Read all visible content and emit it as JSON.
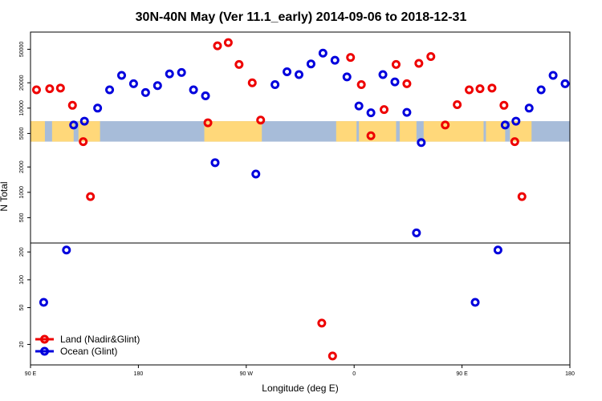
{
  "chart_data": {
    "type": "scatter",
    "title": "30N-40N May (Ver 11.1_early)   2014-09-06 to 2018-12-31",
    "xlabel": "Longitude (deg E)",
    "ylabel": "N Total",
    "xlim": [
      90,
      540
    ],
    "x_ticks": [
      {
        "value": 90,
        "label": "90 E"
      },
      {
        "value": 180,
        "label": "180"
      },
      {
        "value": 270,
        "label": "90 W"
      },
      {
        "value": 360,
        "label": "0"
      },
      {
        "value": 450,
        "label": "90 E"
      },
      {
        "value": 540,
        "label": "180"
      }
    ],
    "y_scale": "log",
    "panels": [
      {
        "name": "upper",
        "ylim": [
          250,
          80000
        ],
        "y_ticks": [
          {
            "value": 500,
            "label": "500"
          },
          {
            "value": 1000,
            "label": "1000"
          },
          {
            "value": 2000,
            "label": "2000"
          },
          {
            "value": 5000,
            "label": "5000"
          },
          {
            "value": 10000,
            "label": "10000"
          },
          {
            "value": 20000,
            "label": "20000"
          },
          {
            "value": 50000,
            "label": "50000"
          }
        ]
      },
      {
        "name": "lower",
        "ylim": [
          12,
          250
        ],
        "y_ticks": [
          {
            "value": 20,
            "label": "20"
          },
          {
            "value": 50,
            "label": "50"
          },
          {
            "value": 100,
            "label": "100"
          },
          {
            "value": 200,
            "label": "200"
          }
        ]
      }
    ],
    "series": [
      {
        "name": "Land (Nadir&Glint)",
        "color": "#ee0000",
        "points": [
          {
            "x": 95,
            "y": 16500
          },
          {
            "x": 106,
            "y": 17000
          },
          {
            "x": 115,
            "y": 17300
          },
          {
            "x": 125,
            "y": 10800
          },
          {
            "x": 134,
            "y": 4000
          },
          {
            "x": 140,
            "y": 890
          },
          {
            "x": 238,
            "y": 6700
          },
          {
            "x": 246,
            "y": 55000
          },
          {
            "x": 255,
            "y": 60000
          },
          {
            "x": 264,
            "y": 33000
          },
          {
            "x": 275,
            "y": 20000
          },
          {
            "x": 282,
            "y": 7200
          },
          {
            "x": 333,
            "y": 34
          },
          {
            "x": 342,
            "y": 15
          },
          {
            "x": 357,
            "y": 40000
          },
          {
            "x": 366,
            "y": 19000
          },
          {
            "x": 374,
            "y": 4700
          },
          {
            "x": 385,
            "y": 9600
          },
          {
            "x": 395,
            "y": 33000
          },
          {
            "x": 404,
            "y": 19500
          },
          {
            "x": 414,
            "y": 34000
          },
          {
            "x": 424,
            "y": 41000
          },
          {
            "x": 436,
            "y": 6300
          },
          {
            "x": 446,
            "y": 11000
          },
          {
            "x": 456,
            "y": 16500
          },
          {
            "x": 465,
            "y": 17000
          },
          {
            "x": 475,
            "y": 17300
          },
          {
            "x": 485,
            "y": 10800
          },
          {
            "x": 494,
            "y": 4000
          },
          {
            "x": 500,
            "y": 890
          }
        ]
      },
      {
        "name": "Ocean (Glint)",
        "color": "#0000dd",
        "points": [
          {
            "x": 101,
            "y": 57
          },
          {
            "x": 120,
            "y": 210
          },
          {
            "x": 126,
            "y": 6300
          },
          {
            "x": 135,
            "y": 7000
          },
          {
            "x": 146,
            "y": 10000
          },
          {
            "x": 156,
            "y": 16500
          },
          {
            "x": 166,
            "y": 24500
          },
          {
            "x": 176,
            "y": 19500
          },
          {
            "x": 186,
            "y": 15300
          },
          {
            "x": 196,
            "y": 18500
          },
          {
            "x": 206,
            "y": 25500
          },
          {
            "x": 216,
            "y": 26500
          },
          {
            "x": 226,
            "y": 16500
          },
          {
            "x": 236,
            "y": 14000
          },
          {
            "x": 244,
            "y": 2250
          },
          {
            "x": 278,
            "y": 1650
          },
          {
            "x": 294,
            "y": 19000
          },
          {
            "x": 304,
            "y": 27000
          },
          {
            "x": 314,
            "y": 25000
          },
          {
            "x": 324,
            "y": 33500
          },
          {
            "x": 334,
            "y": 45000
          },
          {
            "x": 344,
            "y": 37000
          },
          {
            "x": 354,
            "y": 23500
          },
          {
            "x": 364,
            "y": 10600
          },
          {
            "x": 374,
            "y": 8800
          },
          {
            "x": 384,
            "y": 25000
          },
          {
            "x": 394,
            "y": 20500
          },
          {
            "x": 404,
            "y": 8900
          },
          {
            "x": 412,
            "y": 330
          },
          {
            "x": 416,
            "y": 3900
          },
          {
            "x": 461,
            "y": 57
          },
          {
            "x": 480,
            "y": 210
          },
          {
            "x": 486,
            "y": 6300
          },
          {
            "x": 495,
            "y": 7000
          },
          {
            "x": 506,
            "y": 10000
          },
          {
            "x": 516,
            "y": 16500
          },
          {
            "x": 526,
            "y": 24500
          },
          {
            "x": 536,
            "y": 19500
          }
        ]
      }
    ],
    "legend": {
      "position": "bottom-left",
      "entries": [
        "Land (Nadir&Glint)",
        "Ocean (Glint)"
      ]
    },
    "background_map": {
      "band_ylim": [
        4000,
        7000
      ],
      "land_color": "#ffd87a",
      "ocean_color": "#a7bcd9"
    }
  }
}
